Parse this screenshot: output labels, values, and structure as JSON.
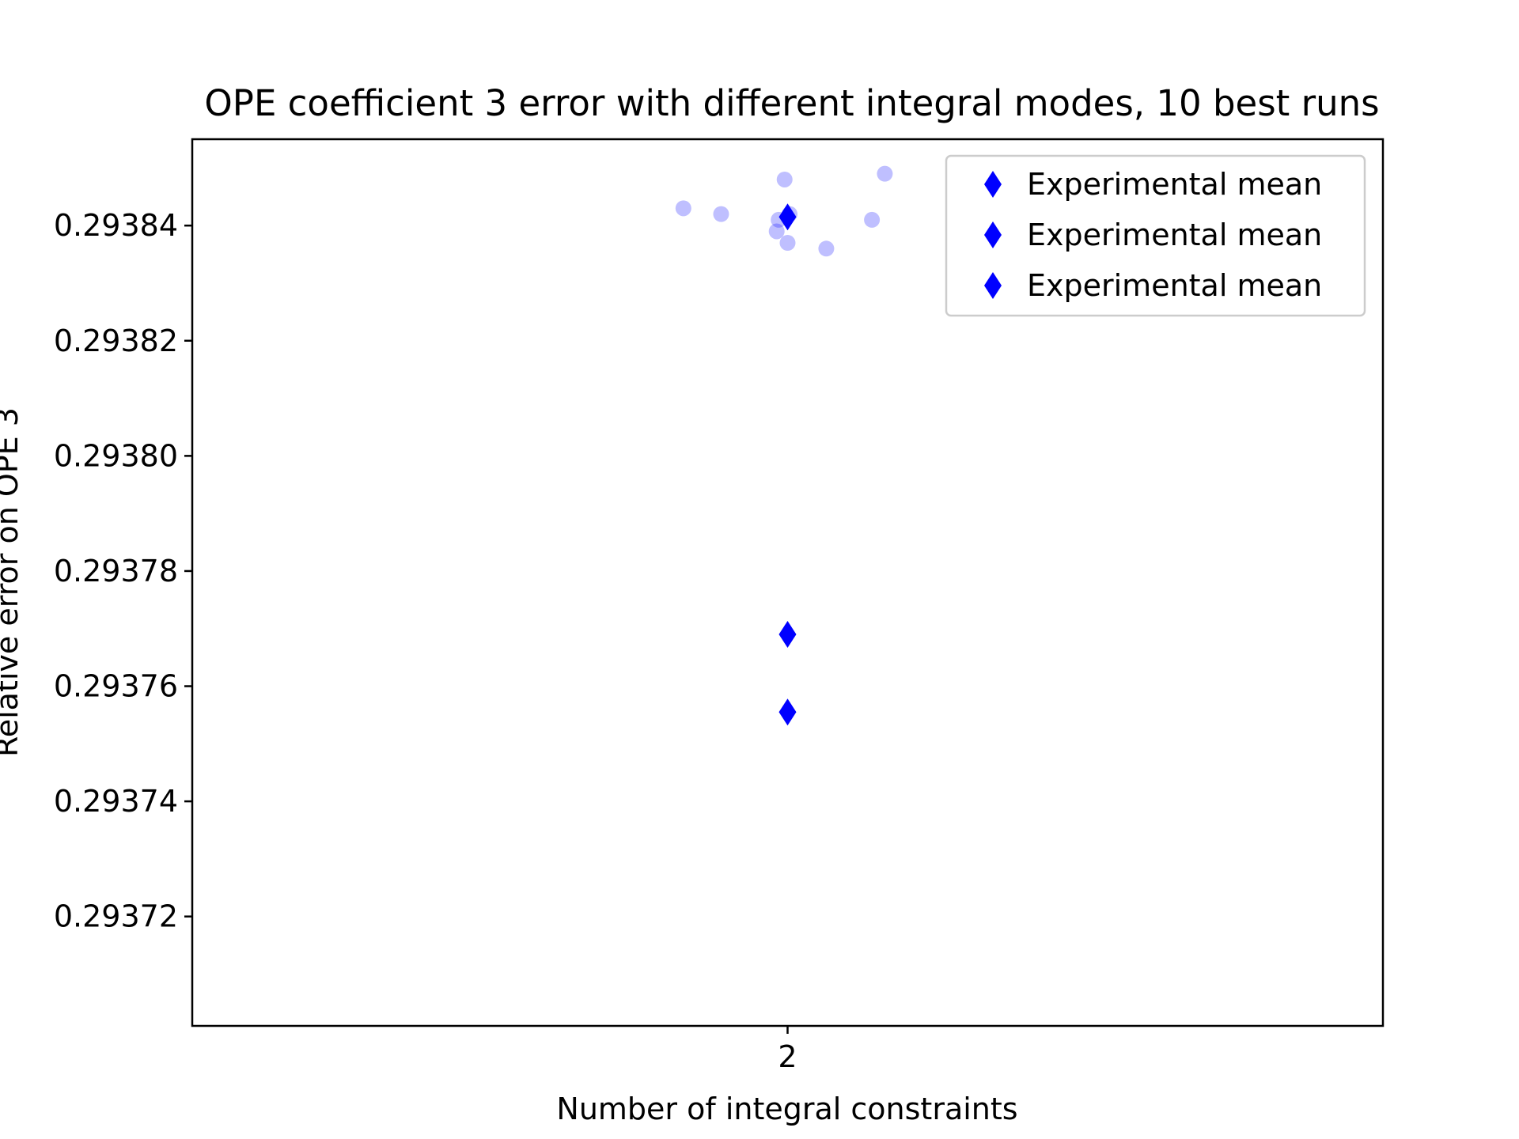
{
  "chart_data": {
    "type": "scatter",
    "title": "OPE coefficient 3 error with different integral modes, 10 best runs",
    "xlabel": "Number of integral constraints",
    "ylabel": "Relative error on OPE 3",
    "x_ticks": [
      2
    ],
    "x_tick_labels": [
      "2"
    ],
    "y_ticks": [
      0.29372,
      0.29374,
      0.29376,
      0.29378,
      0.2938,
      0.29382,
      0.29384
    ],
    "y_tick_labels": [
      "0.29372",
      "0.29374",
      "0.29376",
      "0.29378",
      "0.29380",
      "0.29382",
      "0.29384"
    ],
    "xlim": [
      1.4,
      2.6
    ],
    "ylim": [
      0.293701,
      0.293855
    ],
    "grid": false,
    "legend_position": "top-right",
    "colors": {
      "runs": "#0000ff",
      "mean": "#0000ff",
      "runs_opacity": 0.25
    },
    "run_points": [
      {
        "x": 1.895,
        "y": 0.293843
      },
      {
        "x": 1.933,
        "y": 0.293842
      },
      {
        "x": 1.997,
        "y": 0.293848
      },
      {
        "x": 1.991,
        "y": 0.293841
      },
      {
        "x": 1.989,
        "y": 0.293839
      },
      {
        "x": 2.0,
        "y": 0.293837
      },
      {
        "x": 2.039,
        "y": 0.293836
      },
      {
        "x": 2.085,
        "y": 0.293841
      },
      {
        "x": 2.098,
        "y": 0.293849
      },
      {
        "x": 2.002,
        "y": 0.293842
      }
    ],
    "mean_points": [
      {
        "x": 2.0,
        "y": 0.2938415
      },
      {
        "x": 2.0,
        "y": 0.293769
      },
      {
        "x": 2.0,
        "y": 0.2937555
      }
    ],
    "legend": [
      {
        "label": "Experimental mean",
        "marker": "diamond"
      },
      {
        "label": "Experimental mean",
        "marker": "diamond"
      },
      {
        "label": "Experimental mean",
        "marker": "diamond"
      }
    ]
  }
}
